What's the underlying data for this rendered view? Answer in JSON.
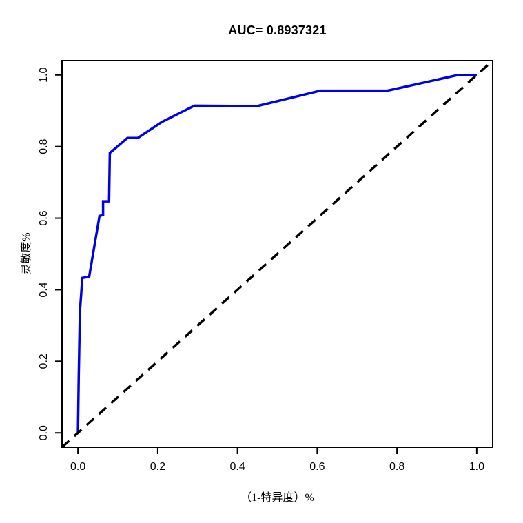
{
  "chart_data": {
    "type": "line",
    "title": "AUC= 0.8937321",
    "auc_value": 0.8937321,
    "xlabel": "（1-特异度）%",
    "ylabel": "灵敏度%",
    "x_range": [
      -0.04,
      1.04
    ],
    "y_range": [
      -0.04,
      1.04
    ],
    "x_ticks": [
      0.0,
      0.2,
      0.4,
      0.6,
      0.8,
      1.0
    ],
    "y_ticks": [
      0.0,
      0.2,
      0.4,
      0.6,
      0.8,
      1.0
    ],
    "x_tick_labels": [
      "0.0",
      "0.2",
      "0.4",
      "0.6",
      "0.8",
      "1.0"
    ],
    "y_tick_labels": [
      "0.0",
      "0.2",
      "0.4",
      "0.6",
      "0.8",
      "1.0"
    ],
    "grid": false,
    "legend_position": "none",
    "axis_color": "#000000",
    "series": [
      {
        "name": "roc-curve",
        "label": "ROC curve",
        "color": "#0000E6",
        "style": "solid",
        "points": [
          [
            0.0,
            0.0
          ],
          [
            0.002,
            0.16
          ],
          [
            0.005,
            0.339
          ],
          [
            0.011,
            0.433
          ],
          [
            0.028,
            0.436
          ],
          [
            0.054,
            0.606
          ],
          [
            0.063,
            0.609
          ],
          [
            0.063,
            0.647
          ],
          [
            0.078,
            0.647
          ],
          [
            0.08,
            0.782
          ],
          [
            0.124,
            0.824
          ],
          [
            0.15,
            0.824
          ],
          [
            0.211,
            0.869
          ],
          [
            0.292,
            0.914
          ],
          [
            0.449,
            0.913
          ],
          [
            0.608,
            0.956
          ],
          [
            0.776,
            0.956
          ],
          [
            0.95,
            0.999
          ],
          [
            1.0,
            1.0
          ]
        ]
      },
      {
        "name": "reference-diagonal",
        "label": "Chance line",
        "color": "#000000",
        "style": "dashed",
        "points": [
          [
            -0.04,
            -0.04
          ],
          [
            1.04,
            1.04
          ]
        ]
      }
    ]
  }
}
